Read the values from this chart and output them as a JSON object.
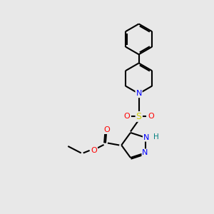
{
  "bg_color": "#e8e8e8",
  "bond_color": "black",
  "bond_width": 1.5,
  "atom_colors": {
    "N": "#0000ff",
    "O": "#ff0000",
    "S": "#cccc00",
    "H": "#008080",
    "C": "black"
  },
  "font_size": 8.0,
  "fig_width": 3.0,
  "fig_height": 3.0,
  "dpi": 100,
  "xlim": [
    0,
    10
  ],
  "ylim": [
    0,
    10
  ]
}
